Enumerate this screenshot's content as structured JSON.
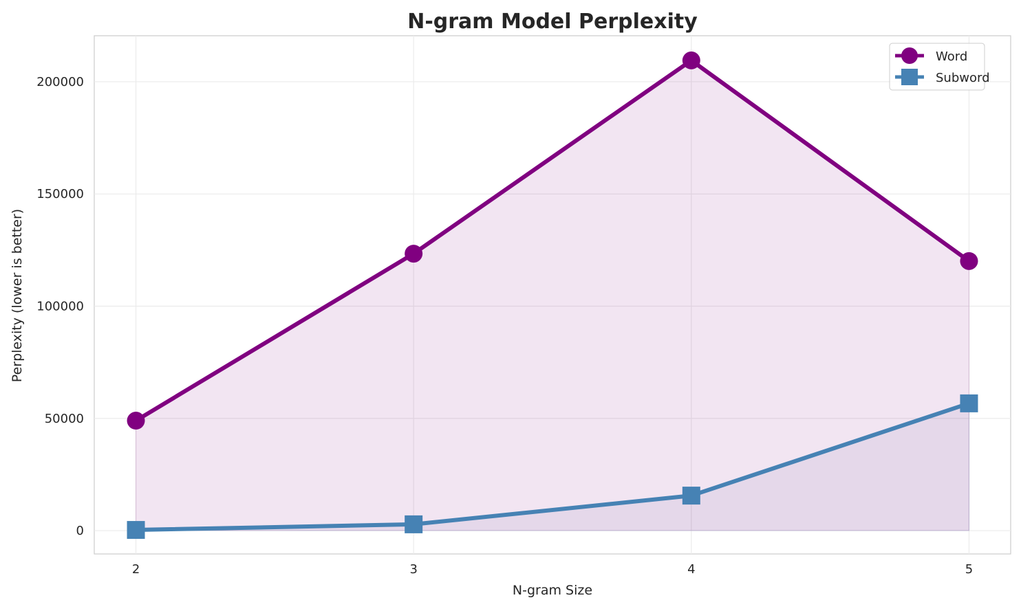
{
  "chart_data": {
    "type": "line",
    "title": "N-gram Model Perplexity",
    "xlabel": "N-gram Size",
    "ylabel": "Perplexity (lower is better)",
    "x": [
      2,
      3,
      4,
      5
    ],
    "xticks": [
      "2",
      "3",
      "4",
      "5"
    ],
    "yticks": [
      "0",
      "50000",
      "100000",
      "150000",
      "200000"
    ],
    "xlim": [
      1.85,
      5.15
    ],
    "ylim": [
      -10400,
      220500
    ],
    "grid": true,
    "legend_position": "top-right",
    "series": [
      {
        "name": "Word",
        "values": [
          49000,
          123400,
          209500,
          120100
        ],
        "color": "#800080",
        "marker": "circle",
        "fill": true
      },
      {
        "name": "Subword",
        "values": [
          300,
          2800,
          15600,
          56700
        ],
        "color": "#4682b4",
        "marker": "square",
        "fill": true
      }
    ]
  }
}
